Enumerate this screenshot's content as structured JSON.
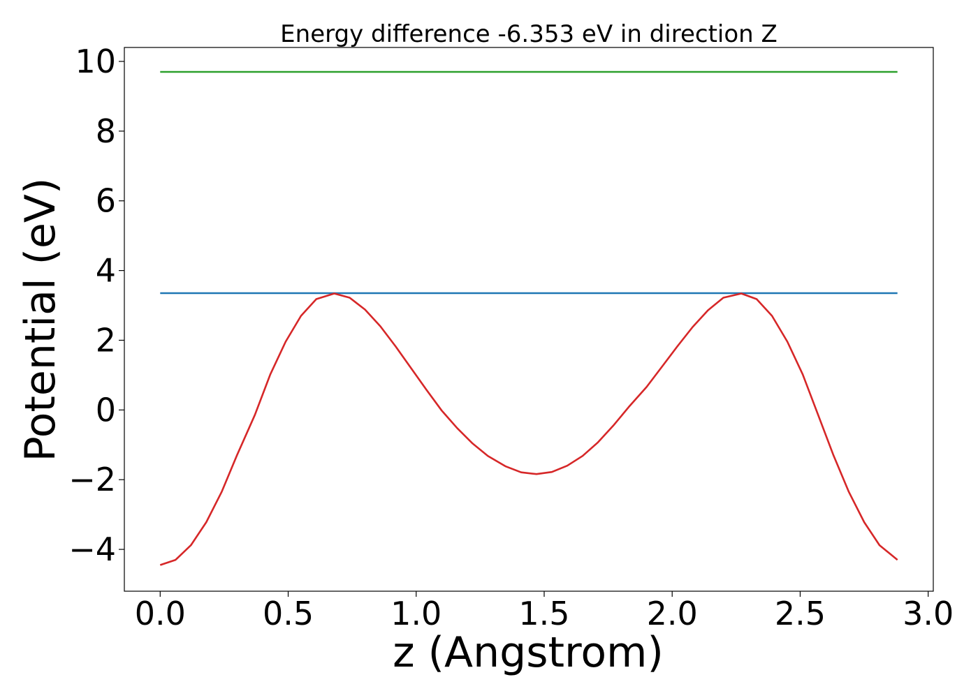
{
  "chart_data": {
    "type": "line",
    "title": "Energy difference -6.353 eV in direction Z",
    "xlabel": "z (Angstrom)",
    "ylabel": "Potential (eV)",
    "xlim": [
      -0.14,
      3.02
    ],
    "ylim": [
      -5.2,
      10.4
    ],
    "x_ticks": [
      0.0,
      0.5,
      1.0,
      1.5,
      2.0,
      2.5,
      3.0
    ],
    "x_tick_labels": [
      "0.0",
      "0.5",
      "1.0",
      "1.5",
      "2.0",
      "2.5",
      "3.0"
    ],
    "y_ticks": [
      -4,
      -2,
      0,
      2,
      4,
      6,
      8,
      10
    ],
    "y_tick_labels": [
      "−4",
      "−2",
      "0",
      "2",
      "4",
      "6",
      "8",
      "10"
    ],
    "grid": false,
    "legend": "none",
    "series": [
      {
        "color": "#2ca02c",
        "x": [
          0.0,
          2.88
        ],
        "y": [
          9.7,
          9.7
        ]
      },
      {
        "color": "#1f77b4",
        "x": [
          0.0,
          2.88
        ],
        "y": [
          3.35,
          3.35
        ]
      },
      {
        "color": "#d62728",
        "x": [
          0.0,
          0.06,
          0.12,
          0.18,
          0.24,
          0.3,
          0.37,
          0.43,
          0.49,
          0.55,
          0.61,
          0.68,
          0.74,
          0.8,
          0.86,
          0.92,
          0.98,
          1.04,
          1.1,
          1.16,
          1.22,
          1.28,
          1.35,
          1.41,
          1.47,
          1.53,
          1.59,
          1.65,
          1.71,
          1.77,
          1.83,
          1.9,
          1.96,
          2.02,
          2.08,
          2.14,
          2.2,
          2.27,
          2.33,
          2.39,
          2.45,
          2.51,
          2.57,
          2.63,
          2.69,
          2.75,
          2.81,
          2.88
        ],
        "y": [
          -4.45,
          -4.3,
          -3.88,
          -3.22,
          -2.35,
          -1.3,
          -0.14,
          1.02,
          1.96,
          2.7,
          3.18,
          3.34,
          3.22,
          2.88,
          2.4,
          1.82,
          1.2,
          0.58,
          -0.02,
          -0.52,
          -0.96,
          -1.32,
          -1.62,
          -1.79,
          -1.84,
          -1.78,
          -1.6,
          -1.32,
          -0.93,
          -0.45,
          0.08,
          0.66,
          1.24,
          1.82,
          2.38,
          2.86,
          3.22,
          3.34,
          3.18,
          2.7,
          1.96,
          1.02,
          -0.14,
          -1.3,
          -2.35,
          -3.22,
          -3.88,
          -4.3
        ]
      }
    ]
  }
}
